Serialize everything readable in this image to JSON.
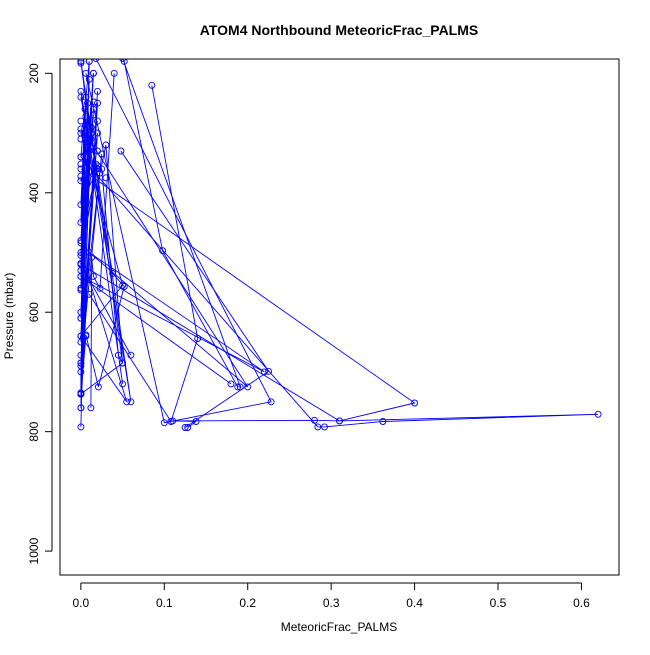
{
  "chart_data": {
    "type": "line",
    "title": "ATOM4 Northbound MeteoricFrac_PALMS",
    "xlabel": "MeteoricFrac_PALMS",
    "ylabel": "Pressure (mbar)",
    "x_ticks": [
      "0.0",
      "0.1",
      "0.2",
      "0.3",
      "0.4",
      "0.5",
      "0.6"
    ],
    "y_ticks": [
      "200",
      "400",
      "600",
      "800",
      "1000"
    ],
    "xlim": [
      -0.025,
      0.645
    ],
    "ylim": [
      1040,
      176
    ],
    "y_reversed": true,
    "marker": "open-circle",
    "grid": false,
    "legend": "none",
    "color": "#0000ff",
    "series": [
      {
        "x": [
          0.0,
          0.01,
          0.0,
          0.02,
          0.0,
          0.05,
          0.0,
          0.01,
          0.0,
          0.05,
          0.0,
          0.008,
          0.0,
          0.015,
          0.0,
          0.012,
          0.0,
          0.01,
          0.0,
          0.008,
          0.0,
          0.02,
          0.0,
          0.015,
          0.0,
          0.055,
          0.0,
          0.012,
          0.0,
          0.008,
          0.0,
          0.01,
          0.0,
          0.0,
          0.006,
          0.0
        ],
        "y": [
          792,
          180,
          760,
          230,
          737,
          685,
          180,
          290,
          640,
          555,
          300,
          250,
          540,
          260,
          560,
          310,
          610,
          330,
          685,
          350,
          700,
          300,
          480,
          200,
          500,
          750,
          640,
          290,
          600,
          340,
          520,
          310,
          685,
          737,
          640,
          737
        ]
      },
      {
        "x": [
          0.0,
          0.012,
          0.0,
          0.02,
          0.0,
          0.025,
          0.0,
          0.015,
          0.0,
          0.008,
          0.0,
          0.006,
          0.0,
          0.015,
          0.0,
          0.02,
          0.0,
          0.01,
          0.0,
          0.005,
          0.0,
          0.02,
          0.0,
          0.02,
          0.0,
          0.01
        ],
        "y": [
          760,
          300,
          735,
          250,
          690,
          335,
          650,
          200,
          610,
          320,
          560,
          240,
          530,
          270,
          505,
          355,
          480,
          210,
          450,
          260,
          420,
          360,
          380,
          280,
          340,
          180
        ]
      },
      {
        "x": [
          0.013,
          0.018,
          0.025,
          0.045,
          0.05,
          0.03,
          0.023
        ],
        "y": [
          325,
          352,
          360,
          672,
          685,
          320,
          367
        ]
      },
      {
        "x": [
          0.0,
          0.038,
          0.052,
          0.021,
          0.006
        ],
        "y": [
          240,
          535,
          557,
          725,
          638
        ]
      },
      {
        "x": [
          0.012,
          0.013,
          0.015,
          0.023,
          0.04
        ],
        "y": [
          760,
          508,
          540,
          560,
          200
        ]
      },
      {
        "x": [
          0.018,
          0.228,
          0.1,
          0.006
        ],
        "y": [
          175,
          750,
          785,
          200
        ]
      },
      {
        "x": [
          0.05,
          0.191,
          0.188,
          0.098,
          0.052
        ],
        "y": [
          175,
          725,
          725,
          497,
          180
        ]
      },
      {
        "x": [
          0.085,
          0.14,
          0.108,
          0.01
        ],
        "y": [
          220,
          644,
          783,
          570
        ]
      },
      {
        "x": [
          0.048,
          0.225,
          0.125
        ],
        "y": [
          330,
          699,
          793
        ]
      },
      {
        "x": [
          0.0,
          0.284,
          0.292,
          0.362,
          0.62,
          0.31,
          0.28,
          0.11,
          0.138,
          0.128
        ],
        "y": [
          340,
          792,
          792,
          783,
          771,
          782,
          781,
          782,
          783,
          793
        ]
      },
      {
        "x": [
          0.0,
          0.4,
          0.31,
          0.0,
          0.06
        ],
        "y": [
          360,
          752,
          782,
          520,
          672
        ]
      },
      {
        "x": [
          0.0,
          0.06,
          0.0,
          0.05
        ],
        "y": [
          180,
          750,
          230,
          720
        ]
      },
      {
        "x": [
          0.005,
          0.2,
          0.01,
          0.22,
          0.0,
          0.18
        ],
        "y": [
          300,
          725,
          500,
          700,
          540,
          720
        ]
      }
    ],
    "extra_points": [
      {
        "x": 0.0,
        "y": 183
      },
      {
        "x": 0.0,
        "y": 280
      },
      {
        "x": 0.0,
        "y": 293
      },
      {
        "x": 0.0,
        "y": 310
      },
      {
        "x": 0.0,
        "y": 352
      },
      {
        "x": 0.0,
        "y": 372
      },
      {
        "x": 0.0,
        "y": 484
      },
      {
        "x": 0.0,
        "y": 518
      },
      {
        "x": 0.0,
        "y": 563
      },
      {
        "x": 0.0,
        "y": 672
      },
      {
        "x": 0.0,
        "y": 737
      },
      {
        "x": 0.003,
        "y": 642
      },
      {
        "x": 0.008,
        "y": 545
      },
      {
        "x": 0.006,
        "y": 272
      },
      {
        "x": 0.012,
        "y": 290
      },
      {
        "x": 0.02,
        "y": 330
      },
      {
        "x": 0.03,
        "y": 375
      },
      {
        "x": 0.016,
        "y": 248
      }
    ]
  }
}
